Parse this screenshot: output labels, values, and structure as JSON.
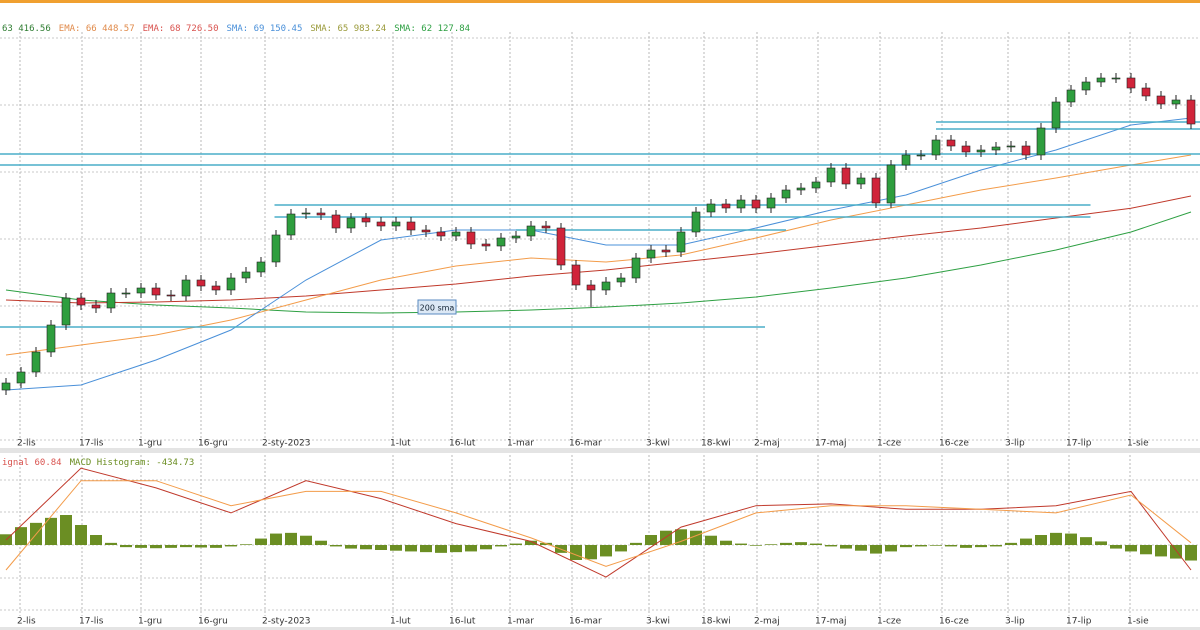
{
  "chart_data": {
    "type": "candlestick",
    "legend": [
      {
        "text": "63 416.56",
        "color": "#2f7d32"
      },
      {
        "text": "EMA: 66 448.57",
        "color": "#e08a4a"
      },
      {
        "text": "EMA: 68 726.50",
        "color": "#d9534f"
      },
      {
        "text": "SMA: 69 150.45",
        "color": "#4a90d9"
      },
      {
        "text": "SMA: 65 983.24",
        "color": "#9a9a3a"
      },
      {
        "text": "SMA: 62 127.84",
        "color": "#2ea043"
      }
    ],
    "categories": [
      "2-lis",
      "17-lis",
      "1-gru",
      "16-gru",
      "2-sty-2023",
      "1-lut",
      "16-lut",
      "1-mar",
      "16-mar",
      "3-kwi",
      "18-kwi",
      "2-maj",
      "17-maj",
      "1-cze",
      "16-cze",
      "3-lip",
      "17-lip",
      "1-sie"
    ],
    "up_color": "#2e9e3e",
    "down_color": "#d0243a",
    "ylim": [
      49220,
      74000
    ],
    "open": [
      52520,
      52940,
      53600,
      54800,
      56420,
      58040,
      57620,
      57440,
      58340,
      58340,
      58640,
      58220,
      58160,
      59120,
      58760,
      58520,
      59240,
      59600,
      60200,
      61820,
      63080,
      63140,
      63020,
      62240,
      62840,
      62600,
      62360,
      62600,
      62120,
      62000,
      61760,
      62000,
      61280,
      61160,
      61640,
      61760,
      62360,
      62240,
      60020,
      58820,
      58520,
      59000,
      59240,
      60440,
      60920,
      60800,
      62000,
      63200,
      63680,
      63440,
      63920,
      63440,
      64040,
      64520,
      64640,
      65000,
      65840,
      64880,
      65240,
      63740,
      66020,
      66620,
      66620,
      67520,
      67160,
      66800,
      66920,
      67100,
      67160,
      66620,
      68240,
      69800,
      70520,
      71000,
      71240,
      71240,
      70640,
      70160,
      69680,
      69920
    ],
    "high": [
      53240,
      53900,
      55100,
      56720,
      58340,
      58340,
      57920,
      58640,
      58640,
      58940,
      58940,
      58520,
      59420,
      59420,
      59060,
      59540,
      59900,
      60500,
      62120,
      63380,
      63440,
      63440,
      63320,
      63140,
      63140,
      62900,
      62900,
      62900,
      62420,
      62300,
      62300,
      62300,
      61580,
      61940,
      62060,
      62660,
      62660,
      62540,
      60320,
      59120,
      59300,
      59540,
      60740,
      61220,
      61220,
      62300,
      63500,
      63980,
      63980,
      64220,
      64220,
      64340,
      64820,
      64940,
      65300,
      66140,
      66140,
      65540,
      65540,
      66320,
      66920,
      66920,
      67820,
      67820,
      67460,
      67220,
      67400,
      67460,
      67460,
      68540,
      70100,
      70820,
      71300,
      71540,
      71540,
      71540,
      70940,
      70460,
      70220,
      70220
    ],
    "low": [
      52220,
      52640,
      53300,
      54500,
      56120,
      57320,
      57140,
      57140,
      58040,
      58040,
      57920,
      57860,
      57860,
      58460,
      58220,
      58220,
      58940,
      59300,
      59900,
      61520,
      62780,
      62720,
      61940,
      61940,
      62300,
      62060,
      62060,
      61820,
      61700,
      61460,
      61460,
      60980,
      60860,
      60860,
      61340,
      61460,
      61940,
      59720,
      58520,
      57500,
      58220,
      58700,
      58940,
      60140,
      60500,
      60500,
      61700,
      62900,
      63140,
      63140,
      63140,
      63140,
      63740,
      64220,
      64340,
      64700,
      64580,
      64580,
      63440,
      63440,
      65720,
      66320,
      66320,
      66860,
      66500,
      66500,
      66620,
      66800,
      66320,
      66320,
      67940,
      69500,
      70220,
      70700,
      70940,
      70340,
      69860,
      69380,
      69380,
      68180
    ],
    "close": [
      52940,
      53600,
      54800,
      56420,
      58040,
      57620,
      57440,
      58340,
      58340,
      58640,
      58220,
      58160,
      59120,
      58760,
      58520,
      59240,
      59600,
      60200,
      61820,
      63080,
      63140,
      63020,
      62240,
      62840,
      62600,
      62360,
      62600,
      62120,
      62000,
      61760,
      62000,
      61280,
      61160,
      61640,
      61760,
      62360,
      62240,
      60020,
      58820,
      58520,
      59000,
      59240,
      60440,
      60920,
      60800,
      62000,
      63200,
      63680,
      63440,
      63920,
      63440,
      64040,
      64520,
      64640,
      65000,
      65840,
      64880,
      65240,
      63740,
      66020,
      66620,
      66620,
      67520,
      67160,
      66800,
      66920,
      67100,
      67160,
      66620,
      68240,
      69800,
      70520,
      71000,
      71240,
      71240,
      70640,
      70160,
      69680,
      69920,
      68480
    ],
    "line_x": [
      0,
      5,
      10,
      15,
      20,
      25,
      30,
      35,
      40,
      45,
      50,
      55,
      60,
      65,
      70,
      75,
      79
    ],
    "lines": [
      {
        "color": "#2ea043",
        "values": [
          58520,
          57920,
          57620,
          57440,
          57200,
          57140,
          57200,
          57320,
          57500,
          57740,
          58100,
          58640,
          59240,
          60020,
          60920,
          62000,
          63200
        ]
      },
      {
        "color": "#c0392b",
        "values": [
          57920,
          57740,
          57800,
          57920,
          58160,
          58520,
          58880,
          59360,
          59720,
          60200,
          60680,
          61220,
          61760,
          62240,
          62840,
          63420,
          64160
        ]
      },
      {
        "color": "#f39c4a",
        "values": [
          54620,
          55220,
          55820,
          56720,
          57920,
          59120,
          59960,
          60440,
          60200,
          60620,
          61640,
          62720,
          63620,
          64520,
          65240,
          66020,
          66620
        ]
      },
      {
        "color": "#4a90d9",
        "values": [
          52520,
          52820,
          54320,
          56120,
          59120,
          61520,
          62120,
          62120,
          61220,
          61220,
          62240,
          63320,
          64220,
          65720,
          66920,
          68420,
          68840
        ]
      }
    ],
    "level_color": "#4aaec8",
    "levels": [
      {
        "value": 66680,
        "from": -0.4,
        "to": 79.6
      },
      {
        "value": 66020,
        "from": -0.4,
        "to": 79.6
      },
      {
        "value": 63620,
        "from": 17.9,
        "to": 72.3
      },
      {
        "value": 62900,
        "from": 17.9,
        "to": 72.3
      },
      {
        "value": 62120,
        "from": 34,
        "to": 52
      },
      {
        "value": 56300,
        "from": -0.4,
        "to": 50.6
      },
      {
        "value": 68600,
        "from": 62,
        "to": 79.6
      },
      {
        "value": 68180,
        "from": 62,
        "to": 79.6
      }
    ],
    "annotation": "200 sma",
    "macd": {
      "legend": [
        "ignal 60.84",
        "MACD Histogram: -434.73"
      ],
      "ylim": [
        -2100,
        2324
      ],
      "hist_color": "#6b8e23",
      "histogram": [
        300,
        500,
        620,
        760,
        840,
        560,
        280,
        60,
        -60,
        -80,
        -90,
        -80,
        -60,
        -70,
        -80,
        -40,
        20,
        180,
        320,
        340,
        260,
        120,
        -40,
        -100,
        -120,
        -140,
        -160,
        -180,
        -200,
        -220,
        -200,
        -180,
        -120,
        -40,
        40,
        120,
        60,
        -220,
        -420,
        -400,
        -320,
        -180,
        60,
        280,
        400,
        440,
        400,
        260,
        120,
        40,
        -20,
        20,
        60,
        80,
        40,
        -40,
        -100,
        -160,
        -240,
        -180,
        -60,
        -40,
        -20,
        -40,
        -80,
        -60,
        -40,
        60,
        180,
        280,
        340,
        320,
        220,
        100,
        -100,
        -180,
        -260,
        -320,
        -380,
        -434.73
      ],
      "macd_color": "#c0392b",
      "macd_line": [
        140,
        2150,
        1600,
        900,
        1800,
        1300,
        600,
        100,
        -900,
        500,
        1100,
        1150,
        1000,
        1000,
        1100,
        1500,
        -700
      ],
      "signal_color": "#f39c4a",
      "signal_line": [
        -700,
        1800,
        1800,
        1100,
        1500,
        1500,
        900,
        200,
        -600,
        100,
        900,
        1100,
        1100,
        1000,
        900,
        1400,
        60.84
      ]
    }
  }
}
